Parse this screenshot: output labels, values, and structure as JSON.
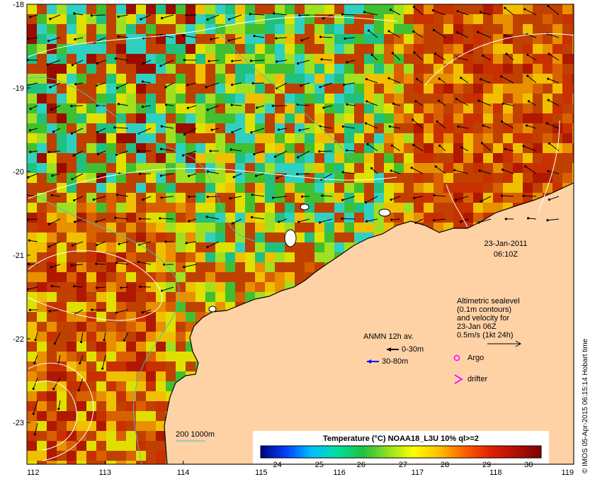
{
  "map": {
    "lat_ticks": [
      "-18",
      "-19",
      "-20",
      "-21",
      "-22",
      "-23"
    ],
    "lon_ticks": [
      "112",
      "113",
      "114",
      "115",
      "116",
      "117",
      "118",
      "119"
    ],
    "lat_range": [
      -23.5,
      -18
    ],
    "lon_range": [
      112,
      119
    ],
    "land_color": "#ffd2a6",
    "coast_color": "#000000"
  },
  "timestamp": {
    "date": "23-Jan-2011",
    "time": "06:10Z"
  },
  "altimetry_note": {
    "lines": [
      "Altimetric sealevel",
      "(0.1m contours)",
      "and velocity for",
      "23-Jan 06Z",
      "0.5m/s (1kt 24h)"
    ]
  },
  "anmn": {
    "title": "ANMN 12h av.",
    "items": [
      {
        "label": "0-30m",
        "color": "#000000"
      },
      {
        "label": "30-80m",
        "color": "#0000ff"
      }
    ]
  },
  "markers": {
    "argo": {
      "label": "Argo",
      "color": "#ff00ff"
    },
    "drifter": {
      "label": "drifter",
      "color": "#ff00ff"
    }
  },
  "isobath": {
    "label": "200  1000m",
    "color": "#40c0c0"
  },
  "colorbar": {
    "title": "Temperature (°C) NOAA18_L3U 10% ql>=2",
    "ticks": [
      "24",
      "25",
      "26",
      "27",
      "28",
      "29",
      "30"
    ],
    "range": [
      23.6,
      30.3
    ],
    "stops": [
      "#000080",
      "#0040ff",
      "#00c0ff",
      "#00e0a0",
      "#20c040",
      "#90e020",
      "#ffff00",
      "#ffc000",
      "#ff6000",
      "#e02000",
      "#b01000",
      "#800000"
    ]
  },
  "credit": "© IMOS 05-Apr-2015 06:15:14 Hobart time"
}
